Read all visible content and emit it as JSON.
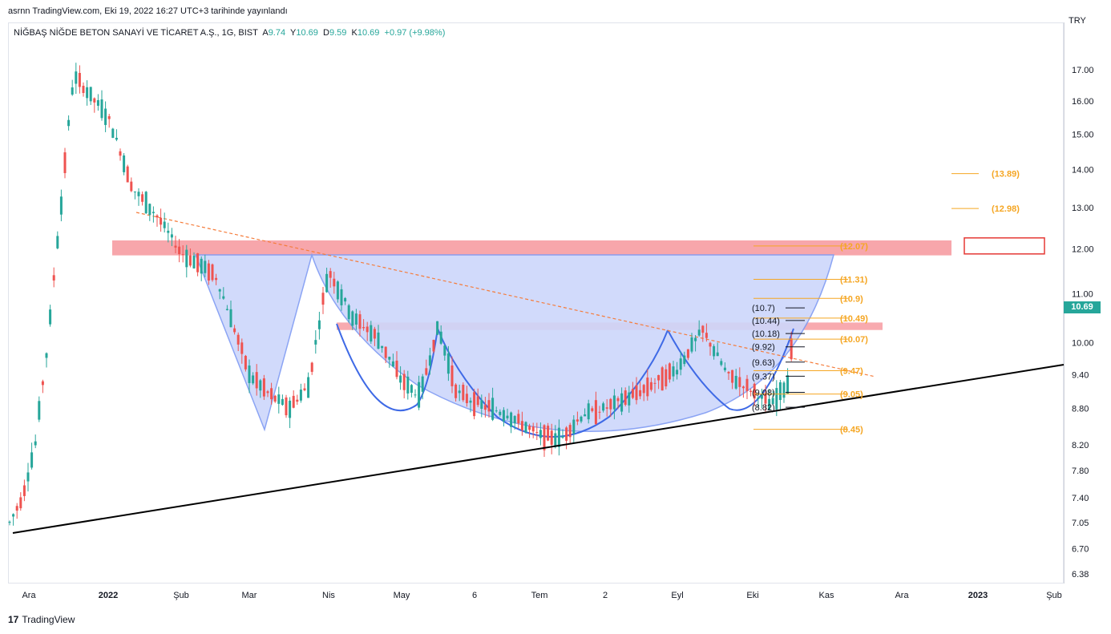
{
  "header": {
    "publisher_line": "asrnn TradingView.com, Eki 19, 2022 16:27 UTC+3 tarihinde yayınlandı"
  },
  "legend": {
    "symbol": "NİĞBAŞ NİĞDE BETON SANAYİ VE TİCARET A.Ş., 1G, BIST",
    "open_label": "A",
    "open": "9.74",
    "high_label": "Y",
    "high": "10.69",
    "low_label": "D",
    "low": "9.59",
    "close_label": "K",
    "close": "10.69",
    "change": "+0.97 (+9.98%)"
  },
  "currency": "TRY",
  "last_price": "10.69",
  "footer": {
    "logo": "17",
    "brand": "TradingView"
  },
  "colors": {
    "up": "#26a69a",
    "down": "#ef5350",
    "zone": "#f7a1a6",
    "cup_fill": "#cdd7fb",
    "cup_stroke": "#7f9bf3",
    "fib": "#f5a623",
    "trend": "#000000",
    "dashed": "#f57c3b",
    "badge": "#26a69a"
  },
  "chart_data": {
    "type": "candlestick",
    "y_scale": "log",
    "ylim": [
      6.2,
      17.5
    ],
    "y_ticks": [
      "6.38",
      "6.70",
      "7.05",
      "7.40",
      "7.80",
      "8.20",
      "8.80",
      "9.40",
      "10.00",
      "11.00",
      "12.00",
      "13.00",
      "14.00",
      "15.00",
      "16.00",
      "17.00"
    ],
    "x_ticks": [
      "Ara",
      "2022",
      "Şub",
      "Mar",
      "Nis",
      "May",
      "6",
      "Tem",
      "2",
      "Eyl",
      "Eki",
      "Kas",
      "Ara",
      "2023",
      "Şub"
    ],
    "bold_x_ticks": [
      "2022",
      "2023"
    ],
    "price_path": [
      [
        "Ara",
        7.05
      ],
      [
        "Ara",
        7.4
      ],
      [
        "Ara",
        8.2
      ],
      [
        "Ara",
        10.0
      ],
      [
        "Ara",
        13.0
      ],
      [
        "Ara",
        16.8
      ],
      [
        "2022",
        15.5
      ],
      [
        "2022",
        13.5
      ],
      [
        "2022",
        12.8
      ],
      [
        "Şub",
        11.9
      ],
      [
        "Şub",
        11.4
      ],
      [
        "Mar",
        9.4
      ],
      [
        "Mar",
        9.05
      ],
      [
        "Mar",
        8.8
      ],
      [
        "Mar",
        9.2
      ],
      [
        "Nis",
        11.5
      ],
      [
        "Nis",
        10.5
      ],
      [
        "Nis",
        10.1
      ],
      [
        "May",
        9.3
      ],
      [
        "May",
        9.0
      ],
      [
        "May",
        10.3
      ],
      [
        "May",
        9.1
      ],
      [
        "6",
        8.9
      ],
      [
        "6",
        8.7
      ],
      [
        "Tem",
        8.35
      ],
      [
        "Tem",
        8.3
      ],
      [
        "Tem",
        8.7
      ],
      [
        "2",
        8.8
      ],
      [
        "2",
        9.1
      ],
      [
        "Eyl",
        9.5
      ],
      [
        "Eyl",
        10.25
      ],
      [
        "Eyl",
        9.4
      ],
      [
        "Eki",
        9.1
      ],
      [
        "Eki",
        8.85
      ],
      [
        "Eki",
        9.3
      ],
      [
        "Eki",
        10.69
      ]
    ],
    "right_axis_labels": [
      {
        "text": "(13.89)",
        "value": 13.89
      },
      {
        "text": "(12.98)",
        "value": 12.98
      },
      {
        "text": "(12.07)",
        "value": 12.07,
        "boxed": true
      },
      {
        "text": "(11.31)",
        "value": 11.31
      },
      {
        "text": "(10.9)",
        "value": 10.9
      },
      {
        "text": "(10.49)",
        "value": 10.49
      },
      {
        "text": "(10.07)",
        "value": 10.07
      },
      {
        "text": "(9.47)",
        "value": 9.47
      },
      {
        "text": "(9.05)",
        "value": 9.05
      },
      {
        "text": "(8.45)",
        "value": 8.45
      }
    ],
    "left_levels": [
      {
        "text": "(10.7)",
        "value": 10.7
      },
      {
        "text": "(10.44)",
        "value": 10.44
      },
      {
        "text": "(10.18)",
        "value": 10.18
      },
      {
        "text": "(9.92)",
        "value": 9.92
      },
      {
        "text": "(9.63)",
        "value": 9.63
      },
      {
        "text": "(9.37)",
        "value": 9.37
      },
      {
        "text": "(9.08)",
        "value": 9.08
      },
      {
        "text": "(8.82)",
        "value": 8.82
      }
    ],
    "zones": [
      {
        "from": 11.85,
        "to": 12.2
      },
      {
        "from": 10.25,
        "to": 10.4
      }
    ]
  }
}
